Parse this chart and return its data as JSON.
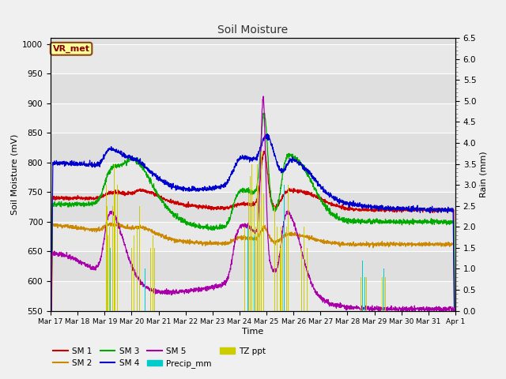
{
  "title": "Soil Moisture",
  "xlabel": "Time",
  "ylabel_left": "Soil Moisture (mV)",
  "ylabel_right": "Rain (mm)",
  "ylim_left": [
    550,
    1010
  ],
  "ylim_right": [
    0.0,
    6.5
  ],
  "yticks_left": [
    550,
    600,
    650,
    700,
    750,
    800,
    850,
    900,
    950,
    1000
  ],
  "yticks_right": [
    0.0,
    0.5,
    1.0,
    1.5,
    2.0,
    2.5,
    3.0,
    3.5,
    4.0,
    4.5,
    5.0,
    5.5,
    6.0,
    6.5
  ],
  "background_color": "#f0f0f0",
  "plot_bg_color": "#e8e8e8",
  "title_color": "#333333",
  "label_box_text": "VR_met",
  "label_box_facecolor": "#ffff99",
  "label_box_edgecolor": "#8B4513",
  "label_box_textcolor": "#8B0000",
  "colors": {
    "SM1": "#cc0000",
    "SM2": "#cc8800",
    "SM3": "#00aa00",
    "SM4": "#0000cc",
    "SM5": "#aa00aa",
    "Precip_mm": "#00cccc",
    "TZ_ppt": "#cccc00"
  },
  "tick_dates": [
    "Mar 17",
    "Mar 18",
    "Mar 19",
    "Mar 20",
    "Mar 21",
    "Mar 22",
    "Mar 23",
    "Mar 24",
    "Mar 25",
    "Mar 26",
    "Mar 27",
    "Mar 28",
    "Mar 29",
    "Mar 30",
    "Mar 31",
    "Apr 1"
  ],
  "n_days": 15,
  "n_points": 2160
}
